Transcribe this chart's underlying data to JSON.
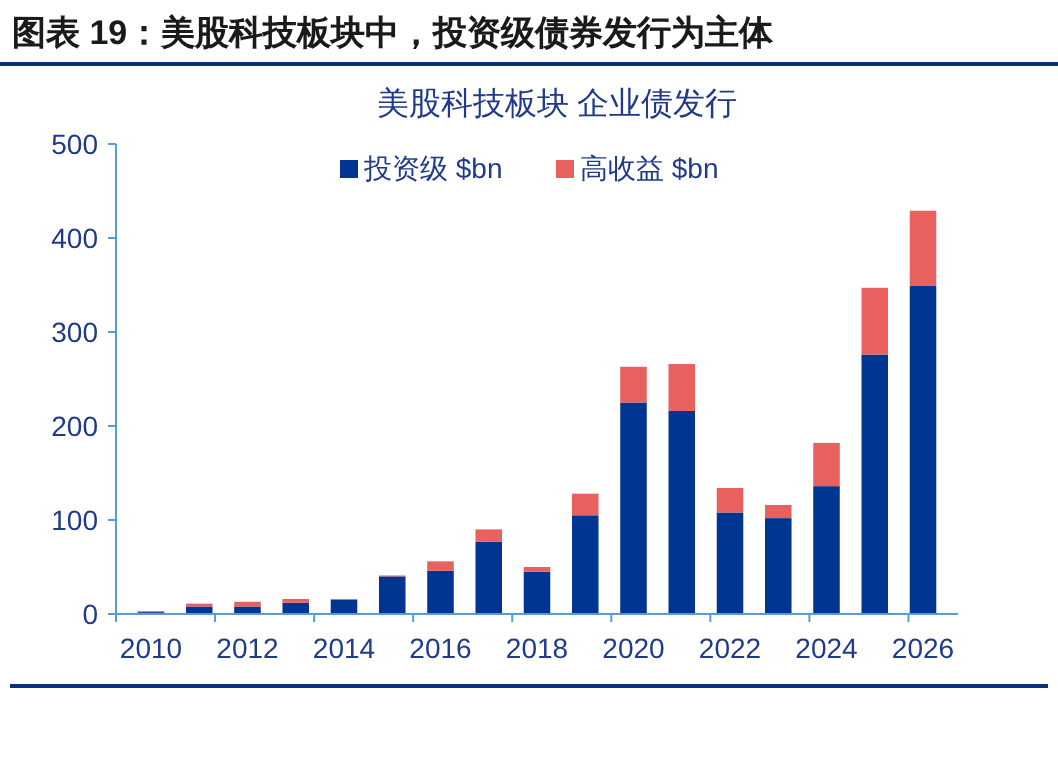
{
  "chart_data": {
    "type": "bar",
    "title": "图表 19：美股科技板块中，投资级债券发行为主体",
    "subtitle": "美股科技板块 企业债发行",
    "categories": [
      "2010",
      null,
      "2012",
      null,
      "2014",
      null,
      "2016",
      null,
      "2018",
      null,
      "2020",
      null,
      "2022",
      null,
      "2024",
      null,
      "2026"
    ],
    "series": [
      {
        "name": "投资级 $bn",
        "color": "#003591",
        "values": [
          2,
          8,
          8,
          12,
          15,
          40,
          46,
          77,
          45,
          105,
          225,
          216,
          108,
          102,
          136,
          276,
          349
        ]
      },
      {
        "name": "高收益 $bn",
        "color": "#e8615f",
        "values": [
          1,
          3,
          5,
          4,
          1,
          1,
          10,
          13,
          5,
          23,
          38,
          50,
          26,
          14,
          46,
          71,
          80
        ]
      }
    ],
    "stacked": true,
    "ylim": [
      0,
      500
    ],
    "yticks": [
      0,
      100,
      200,
      300,
      400,
      500
    ],
    "legend": "top",
    "grid": false
  }
}
